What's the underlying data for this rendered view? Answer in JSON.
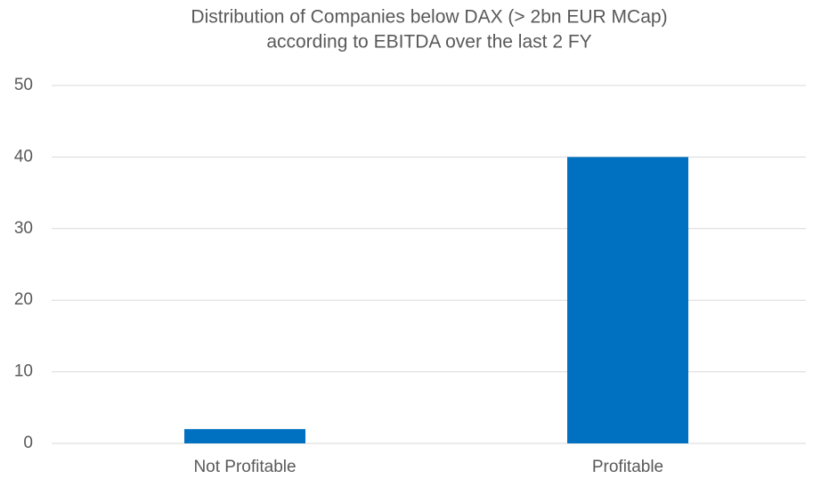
{
  "chart_data": {
    "type": "bar",
    "title": [
      "Distribution of Companies below DAX (> 2bn EUR MCap)",
      "according to EBITDA over the last 2 FY"
    ],
    "categories": [
      "Not Profitable",
      "Profitable"
    ],
    "values": [
      2,
      40
    ],
    "color": "#0070c0",
    "ylim": [
      0,
      50
    ],
    "yticks": [
      0,
      10,
      20,
      30,
      40,
      50
    ],
    "grid": true
  }
}
